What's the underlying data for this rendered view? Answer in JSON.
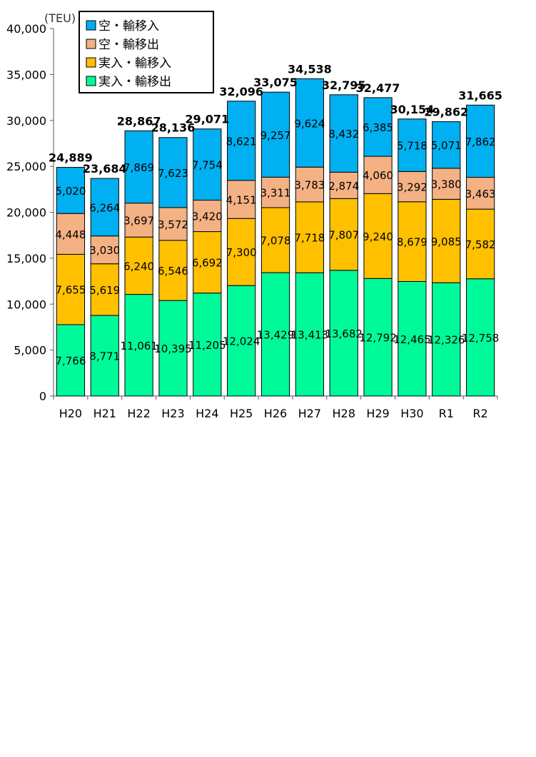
{
  "chart_data": {
    "type": "bar",
    "stacked": true,
    "unit": "(TEU)",
    "categories": [
      "H20",
      "H21",
      "H22",
      "H23",
      "H24",
      "H25",
      "H26",
      "H27",
      "H28",
      "H29",
      "H30",
      "R1",
      "R2"
    ],
    "series": [
      {
        "name": "実入・輸移出",
        "color": "#00FA9A",
        "values": [
          7766,
          8771,
          11061,
          10395,
          11205,
          12024,
          13429,
          13413,
          13682,
          12792,
          12465,
          12326,
          12758
        ]
      },
      {
        "name": "実入・輸移入",
        "color": "#FFC000",
        "values": [
          7655,
          5619,
          6240,
          6546,
          6692,
          7300,
          7078,
          7718,
          7807,
          9240,
          8679,
          9085,
          7582
        ]
      },
      {
        "name": "空・輸移出",
        "color": "#F4B183",
        "values": [
          4448,
          3030,
          3697,
          3572,
          3420,
          4151,
          3311,
          3783,
          2874,
          4060,
          3292,
          3380,
          3463
        ]
      },
      {
        "name": "空・輸移入",
        "color": "#00B0F0",
        "values": [
          5020,
          6264,
          7869,
          7623,
          7754,
          8621,
          9257,
          9624,
          8432,
          6385,
          5718,
          5071,
          7862
        ]
      }
    ],
    "totals": [
      24889,
      23684,
      28867,
      28136,
      29071,
      32096,
      33075,
      34538,
      32795,
      32477,
      30154,
      29862,
      31665
    ],
    "ylim": [
      0,
      40000
    ],
    "yticks": [
      0,
      5000,
      10000,
      15000,
      20000,
      25000,
      30000,
      35000,
      40000
    ],
    "legend_position": "top-left",
    "legend_order": [
      "空・輸移入",
      "空・輸移出",
      "実入・輸移入",
      "実入・輸移出"
    ],
    "grid": false
  }
}
